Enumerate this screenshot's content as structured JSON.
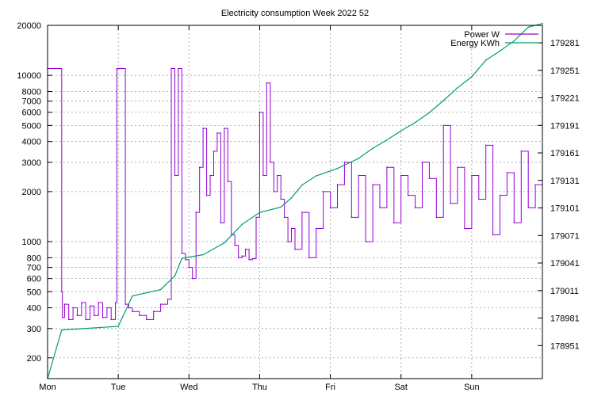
{
  "chart_data": {
    "type": "line",
    "title": "Electricity consumption Week 2022 52",
    "x_tick_labels": [
      "Mon",
      "Tue",
      "Wed",
      "Thu",
      "Fri",
      "Sat",
      "Sun"
    ],
    "y_left": {
      "scale": "log",
      "range": [
        150,
        20000
      ],
      "tick_labels": [
        "200",
        "300",
        "400",
        "500",
        "600",
        "700",
        "800",
        "1000",
        "2000",
        "3000",
        "4000",
        "5000",
        "6000",
        "7000",
        "8000",
        "10000",
        "20000"
      ]
    },
    "y_right": {
      "scale": "linear",
      "range": [
        178915,
        179300
      ],
      "tick_labels": [
        "178951",
        "178981",
        "179011",
        "179041",
        "179071",
        "179101",
        "179131",
        "179161",
        "179191",
        "179221",
        "179251",
        "179281"
      ]
    },
    "grid": true,
    "legend_position": "top-right",
    "series": [
      {
        "name": "Power W",
        "axis": "left",
        "color": "#9400d3",
        "x": [
          0.0,
          0.19,
          0.2,
          0.21,
          0.24,
          0.3,
          0.36,
          0.42,
          0.48,
          0.54,
          0.6,
          0.66,
          0.72,
          0.78,
          0.84,
          0.9,
          0.96,
          0.98,
          1.0,
          1.02,
          1.05,
          1.1,
          1.15,
          1.2,
          1.3,
          1.4,
          1.5,
          1.6,
          1.7,
          1.75,
          1.8,
          1.85,
          1.9,
          1.95,
          2.0,
          2.05,
          2.1,
          2.15,
          2.2,
          2.25,
          2.3,
          2.35,
          2.4,
          2.45,
          2.5,
          2.55,
          2.6,
          2.65,
          2.7,
          2.75,
          2.8,
          2.85,
          2.9,
          2.95,
          3.0,
          3.05,
          3.1,
          3.15,
          3.2,
          3.25,
          3.3,
          3.35,
          3.4,
          3.45,
          3.5,
          3.6,
          3.7,
          3.8,
          3.9,
          4.0,
          4.1,
          4.2,
          4.3,
          4.4,
          4.5,
          4.6,
          4.7,
          4.8,
          4.9,
          5.0,
          5.1,
          5.2,
          5.3,
          5.4,
          5.5,
          5.6,
          5.7,
          5.8,
          5.9,
          6.0,
          6.1,
          6.2,
          6.3,
          6.4,
          6.5,
          6.6,
          6.7,
          6.8,
          6.9,
          7.0
        ],
        "values": [
          11000,
          11000,
          500,
          350,
          420,
          340,
          400,
          360,
          430,
          340,
          410,
          360,
          430,
          350,
          400,
          340,
          430,
          11000,
          11000,
          11000,
          11000,
          420,
          400,
          380,
          360,
          340,
          380,
          420,
          450,
          11000,
          2500,
          11000,
          850,
          780,
          700,
          600,
          1500,
          2800,
          4800,
          1900,
          2500,
          3500,
          4500,
          1300,
          4800,
          2300,
          1100,
          950,
          800,
          820,
          900,
          780,
          790,
          1400,
          6000,
          2500,
          9000,
          3000,
          2000,
          2500,
          1800,
          1400,
          1000,
          1200,
          900,
          1500,
          800,
          1200,
          2000,
          1600,
          2200,
          3000,
          1400,
          2500,
          1000,
          2200,
          1600,
          2800,
          1300,
          2500,
          1900,
          1600,
          3000,
          2400,
          1400,
          5000,
          1700,
          2800,
          1200,
          2500,
          1800,
          3800,
          1100,
          1900,
          2600,
          1300,
          3500,
          1600,
          2200,
          1600
        ]
      },
      {
        "name": "Energy KWh",
        "axis": "right",
        "color": "#009e73",
        "x": [
          0.0,
          0.2,
          1.0,
          1.2,
          1.6,
          1.8,
          1.9,
          2.2,
          2.5,
          2.75,
          3.0,
          3.3,
          3.45,
          3.6,
          3.8,
          4.1,
          4.4,
          4.6,
          4.8,
          5.0,
          5.2,
          5.4,
          5.6,
          5.8,
          6.0,
          6.2,
          6.4,
          6.6,
          6.8,
          7.0
        ],
        "values": [
          178915,
          178968,
          178972,
          179005,
          179012,
          179027,
          179046,
          179050,
          179063,
          179083,
          179096,
          179102,
          179112,
          179126,
          179136,
          179144,
          179155,
          179166,
          179175,
          179185,
          179194,
          179205,
          179218,
          179232,
          179244,
          179262,
          179272,
          179283,
          179298,
          179302
        ]
      }
    ]
  }
}
